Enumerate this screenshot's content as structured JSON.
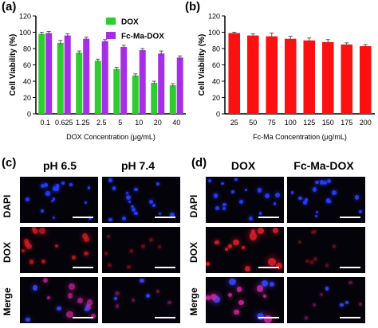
{
  "panels": {
    "a": "(a)",
    "b": "(b)",
    "c": "(c)",
    "d": "(d)"
  },
  "chart_data": [
    {
      "type": "bar",
      "categories": [
        "0.1",
        "0.625",
        "1.25",
        "2.5",
        "5",
        "10",
        "20",
        "40"
      ],
      "series": [
        {
          "name": "DOX",
          "color": "#2ecc2e",
          "values": [
            98,
            87,
            75,
            65,
            55,
            47,
            38,
            35
          ],
          "errors": [
            2,
            3,
            2,
            2,
            2,
            2,
            2,
            2
          ]
        },
        {
          "name": "Fc-Ma-DOX",
          "color": "#a42fe6",
          "values": [
            99,
            96,
            92,
            89,
            82,
            78,
            74,
            69
          ],
          "errors": [
            2,
            2,
            2,
            2,
            2,
            2,
            3,
            2
          ]
        }
      ],
      "xlabel": "DOX Concentration (μg/mL)",
      "ylabel": "Cell Viability (%)",
      "ylim": [
        0,
        120
      ],
      "yticks": [
        "0",
        "20",
        "40",
        "60",
        "80",
        "100",
        "120"
      ],
      "legend": "top-right"
    },
    {
      "type": "bar",
      "categories": [
        "25",
        "50",
        "75",
        "100",
        "125",
        "150",
        "175",
        "200"
      ],
      "series": [
        {
          "name": "Fc-Ma",
          "color": "#ff1010",
          "values": [
            99,
            96,
            95,
            92,
            90,
            88,
            85,
            83
          ],
          "errors": [
            1,
            2,
            4,
            3,
            3,
            3,
            2,
            2
          ]
        }
      ],
      "xlabel": "Fc-Ma Concentration (μg/mL)",
      "ylabel": "Cell Viability (%)",
      "ylim": [
        0,
        120
      ],
      "yticks": [
        "0",
        "20",
        "40",
        "60",
        "80",
        "100",
        "120"
      ]
    }
  ],
  "panel_c": {
    "columns": [
      "pH 6.5",
      "pH 7.4"
    ],
    "rows": [
      "DAPI",
      "DOX",
      "Merge"
    ]
  },
  "panel_d": {
    "columns": [
      "DOX",
      "Fc-Ma-DOX"
    ],
    "rows": [
      "DAPI",
      "DOX",
      "Merge"
    ]
  }
}
